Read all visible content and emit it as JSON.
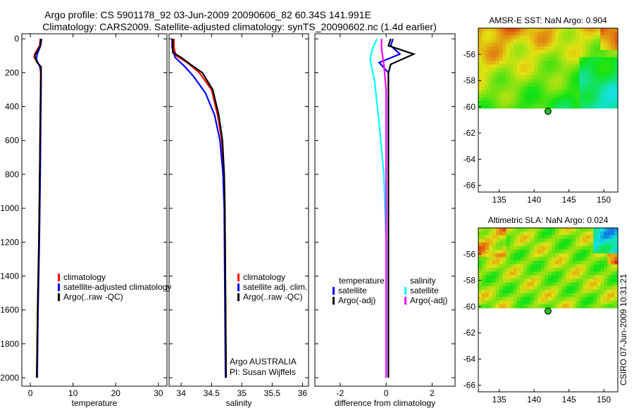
{
  "header": {
    "line1": "Argo profile: CS 5901178_92 03-Jun-2009 20090606_82 60.34S 141.991E",
    "line2": "Climatology: CARS2009. Satellite-adjusted climatology: synTS_20090602.nc (1.4d earlier)"
  },
  "credit": "CSIRO 07-Jun-2009 10:31:21",
  "chart_data": [
    {
      "type": "line",
      "name": "temperature-profile",
      "xlabel": "temperature",
      "ylabel": "",
      "xlim": [
        -2,
        32
      ],
      "ylim": [
        2050,
        -30
      ],
      "xticks": [
        0,
        10,
        20,
        30
      ],
      "yticks": [
        0,
        200,
        400,
        600,
        800,
        1000,
        1200,
        1400,
        1600,
        1800,
        2000
      ],
      "legend": [
        "climatology",
        "satellite-adjusted climatology",
        "Argo(..raw -QC)"
      ],
      "series": [
        {
          "name": "climatology",
          "color": "#ff0000",
          "points": [
            [
              2.3,
              0
            ],
            [
              2.2,
              40
            ],
            [
              1.0,
              90
            ],
            [
              0.9,
              110
            ],
            [
              2.2,
              160
            ],
            [
              2.4,
              200
            ],
            [
              2.4,
              300
            ],
            [
              2.3,
              500
            ],
            [
              2.2,
              800
            ],
            [
              2.0,
              1200
            ],
            [
              1.7,
              1600
            ],
            [
              1.5,
              2000
            ]
          ]
        },
        {
          "name": "satellite-adjusted climatology",
          "color": "#0000ff",
          "points": [
            [
              2.6,
              0
            ],
            [
              2.4,
              40
            ],
            [
              1.6,
              90
            ],
            [
              1.4,
              120
            ],
            [
              2.3,
              170
            ],
            [
              2.5,
              200
            ],
            [
              2.5,
              300
            ],
            [
              2.4,
              500
            ],
            [
              2.3,
              800
            ],
            [
              2.1,
              1200
            ],
            [
              1.8,
              1600
            ],
            [
              1.6,
              2000
            ]
          ]
        },
        {
          "name": "Argo(..raw -QC)",
          "color": "#000000",
          "points": [
            [
              2.5,
              0
            ],
            [
              2.3,
              40
            ],
            [
              1.0,
              100
            ],
            [
              1.6,
              140
            ],
            [
              2.5,
              165
            ],
            [
              2.5,
              200
            ],
            [
              2.4,
              300
            ],
            [
              2.3,
              500
            ],
            [
              2.2,
              800
            ],
            [
              2.0,
              1200
            ],
            [
              1.7,
              1600
            ],
            [
              1.5,
              2000
            ]
          ]
        }
      ]
    },
    {
      "type": "line",
      "name": "salinity-profile",
      "xlabel": "salinity",
      "ylabel": "",
      "xlim": [
        33.8,
        36.1
      ],
      "ylim": [
        2050,
        -30
      ],
      "xticks": [
        34,
        34.5,
        35,
        35.5,
        36
      ],
      "xtick_labels": [
        "34",
        "34.5",
        "35",
        "35.5",
        "36"
      ],
      "legend": [
        "climatology",
        "satellite adj. clim.",
        "Argo(..raw -QC)"
      ],
      "annotation": [
        "Argo AUSTRALIA",
        "PI: Susan Wijffels"
      ],
      "series": [
        {
          "name": "climatology",
          "color": "#ff0000",
          "points": [
            [
              33.88,
              0
            ],
            [
              33.88,
              50
            ],
            [
              33.9,
              80
            ],
            [
              33.92,
              100
            ],
            [
              34.1,
              140
            ],
            [
              34.3,
              200
            ],
            [
              34.5,
              300
            ],
            [
              34.6,
              450
            ],
            [
              34.67,
              600
            ],
            [
              34.7,
              800
            ],
            [
              34.72,
              1000
            ],
            [
              34.73,
              1500
            ],
            [
              34.74,
              2000
            ]
          ]
        },
        {
          "name": "satellite adj. clim.",
          "color": "#0000ff",
          "points": [
            [
              33.85,
              0
            ],
            [
              33.85,
              50
            ],
            [
              33.87,
              75
            ],
            [
              33.9,
              110
            ],
            [
              34.05,
              160
            ],
            [
              34.2,
              220
            ],
            [
              34.4,
              320
            ],
            [
              34.55,
              450
            ],
            [
              34.64,
              600
            ],
            [
              34.69,
              800
            ],
            [
              34.71,
              1000
            ],
            [
              34.72,
              1500
            ],
            [
              34.73,
              2000
            ]
          ]
        },
        {
          "name": "Argo(..raw -QC)",
          "color": "#000000",
          "points": [
            [
              33.86,
              0
            ],
            [
              33.86,
              80
            ],
            [
              34.0,
              110
            ],
            [
              34.15,
              150
            ],
            [
              34.35,
              200
            ],
            [
              34.52,
              300
            ],
            [
              34.62,
              450
            ],
            [
              34.68,
              600
            ],
            [
              34.71,
              800
            ],
            [
              34.72,
              1000
            ],
            [
              34.73,
              1500
            ],
            [
              34.74,
              2000
            ]
          ]
        }
      ]
    },
    {
      "type": "line",
      "name": "difference-profile",
      "xlabel": "difference from climatology",
      "ylabel": "",
      "xlim": [
        -3.1,
        3.0
      ],
      "ylim": [
        2050,
        -30
      ],
      "xticks": [
        -2,
        0,
        2
      ],
      "legend_title_left": "temperature",
      "legend_title_right": "salinity",
      "legend": [
        "satellite",
        "Argo(-adj)",
        "satellite",
        "Argo(-adj)"
      ],
      "series": [
        {
          "name": "temperature satellite",
          "color": "#0000ff",
          "points": [
            [
              0.3,
              0
            ],
            [
              0.2,
              40
            ],
            [
              0.6,
              90
            ],
            [
              -0.3,
              140
            ],
            [
              0.1,
              200
            ],
            [
              0.1,
              400
            ],
            [
              0.1,
              800
            ],
            [
              0.1,
              1200
            ],
            [
              0.1,
              1600
            ],
            [
              0.1,
              2000
            ]
          ]
        },
        {
          "name": "temperature Argo(-adj)",
          "color": "#000000",
          "points": [
            [
              0.2,
              0
            ],
            [
              0.1,
              40
            ],
            [
              1.2,
              90
            ],
            [
              0.2,
              150
            ],
            [
              0.1,
              200
            ],
            [
              0.1,
              400
            ],
            [
              0.1,
              800
            ],
            [
              0.1,
              1200
            ],
            [
              0.1,
              1600
            ],
            [
              0.1,
              2000
            ]
          ]
        },
        {
          "name": "salinity satellite",
          "color": "#00ffff",
          "points": [
            [
              -0.4,
              0
            ],
            [
              -0.6,
              60
            ],
            [
              -0.7,
              120
            ],
            [
              -0.5,
              250
            ],
            [
              -0.3,
              500
            ],
            [
              -0.1,
              800
            ],
            [
              0,
              1200
            ],
            [
              0,
              1600
            ],
            [
              0,
              2000
            ]
          ]
        },
        {
          "name": "salinity Argo(-adj)",
          "color": "#ff00ff",
          "points": [
            [
              -0.2,
              0
            ],
            [
              -0.2,
              60
            ],
            [
              -0.1,
              150
            ],
            [
              0,
              300
            ],
            [
              0,
              600
            ],
            [
              0,
              1000
            ],
            [
              0,
              1500
            ],
            [
              0,
              2000
            ]
          ]
        }
      ]
    },
    {
      "type": "heatmap",
      "name": "amsr-sst-map",
      "title": "AMSR-E SST: NaN Argo: 0.904",
      "xlim": [
        132,
        152
      ],
      "ylim": [
        -66.5,
        -54
      ],
      "xticks": [
        135,
        140,
        145,
        150
      ],
      "yticks": [
        -56,
        -58,
        -60,
        -62,
        -64,
        -66
      ],
      "marker": {
        "lon": 141.991,
        "lat": -60.34
      }
    },
    {
      "type": "heatmap",
      "name": "altimetric-sla-map",
      "title": "Altimetric SLA: NaN Argo: 0.024",
      "xlim": [
        132,
        152
      ],
      "ylim": [
        -66.5,
        -54
      ],
      "xticks": [
        135,
        140,
        145,
        150
      ],
      "yticks": [
        -56,
        -58,
        -60,
        -62,
        -64,
        -66
      ],
      "marker": {
        "lon": 141.991,
        "lat": -60.34
      }
    }
  ]
}
